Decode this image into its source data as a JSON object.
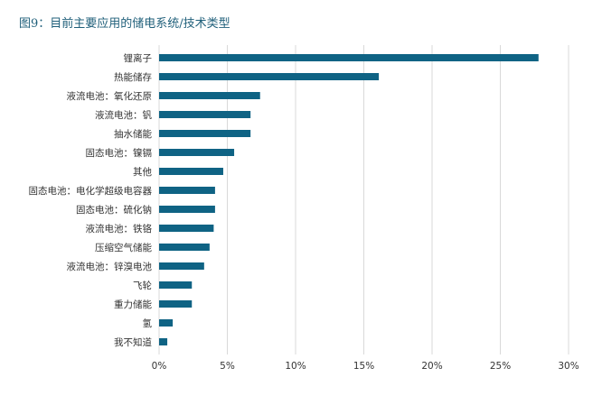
{
  "figure": {
    "title": "图9：目前主要应用的储电系统/技术类型"
  },
  "colors": {
    "bar": "#0f6384",
    "grid": "#d9d9d9",
    "text": "#333333",
    "title": "#1f5f7a"
  },
  "chart_data": {
    "type": "bar",
    "orientation": "horizontal",
    "title": "图9：目前主要应用的储电系统/技术类型",
    "xlabel": "",
    "ylabel": "",
    "categories": [
      "锂离子",
      "热能储存",
      "液流电池：氧化还原",
      "液流电池：钒",
      "抽水储能",
      "固态电池：镍镉",
      "其他",
      "固态电池：电化学超级电容器",
      "固态电池：硫化钠",
      "液流电池：铁铬",
      "压缩空气储能",
      "液流电池：锌溴电池",
      "飞轮",
      "重力储能",
      "氢",
      "我不知道"
    ],
    "values": [
      27.8,
      16.1,
      7.4,
      6.7,
      6.7,
      5.5,
      4.7,
      4.1,
      4.1,
      4.0,
      3.7,
      3.3,
      2.4,
      2.4,
      1.0,
      0.6
    ],
    "xlim": [
      0,
      30
    ],
    "ticks": [
      0,
      5,
      10,
      15,
      20,
      25,
      30
    ],
    "tick_labels": [
      "0%",
      "5%",
      "10%",
      "15%",
      "20%",
      "25%",
      "30%"
    ],
    "grid": true,
    "legend": "none"
  }
}
